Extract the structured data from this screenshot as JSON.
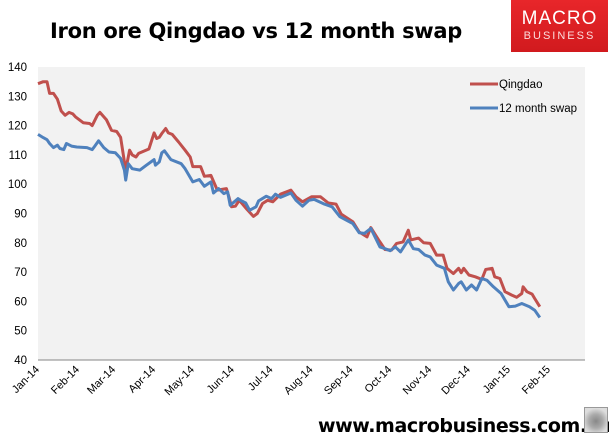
{
  "header": {
    "title": "Iron ore Qingdao vs 12 month swap"
  },
  "logo": {
    "line1": "MACRO",
    "line2": "BUSINESS"
  },
  "footer": {
    "url": "www.macrobusiness.com.au"
  },
  "chart_data": {
    "type": "line",
    "title": "Iron ore Qingdao vs 12 month swap",
    "xlabel": "",
    "ylabel": "",
    "ylim": [
      40,
      140
    ],
    "yticks": [
      40,
      50,
      60,
      70,
      80,
      90,
      100,
      110,
      120,
      130,
      140
    ],
    "xlim": [
      "2014-01-01",
      "2015-03-01"
    ],
    "xticks": [
      {
        "date": "2014-01-01",
        "label": "Jan-14"
      },
      {
        "date": "2014-02-01",
        "label": "Feb-14"
      },
      {
        "date": "2014-03-01",
        "label": "Mar-14"
      },
      {
        "date": "2014-04-01",
        "label": "Apr-14"
      },
      {
        "date": "2014-05-01",
        "label": "May-14"
      },
      {
        "date": "2014-06-01",
        "label": "Jun-14"
      },
      {
        "date": "2014-07-01",
        "label": "Jul-14"
      },
      {
        "date": "2014-08-01",
        "label": "Aug-14"
      },
      {
        "date": "2014-09-01",
        "label": "Sep-14"
      },
      {
        "date": "2014-10-01",
        "label": "Oct-14"
      },
      {
        "date": "2014-11-01",
        "label": "Nov-14"
      },
      {
        "date": "2014-12-01",
        "label": "Dec-14"
      },
      {
        "date": "2015-01-01",
        "label": "Jan-15"
      },
      {
        "date": "2015-02-01",
        "label": "Feb-15"
      }
    ],
    "grid": false,
    "legend_position": "top-right",
    "background": "#f2f2f2",
    "series": [
      {
        "name": "Qingdao",
        "color": "#c0504d",
        "points": [
          [
            "2014-01-01",
            134.3
          ],
          [
            "2014-01-05",
            135
          ],
          [
            "2014-01-08",
            135
          ],
          [
            "2014-01-10",
            131
          ],
          [
            "2014-01-13",
            131
          ],
          [
            "2014-01-16",
            129
          ],
          [
            "2014-01-19",
            125
          ],
          [
            "2014-01-22",
            123.5
          ],
          [
            "2014-01-25",
            124.5
          ],
          [
            "2014-01-28",
            124
          ],
          [
            "2014-01-30",
            123
          ],
          [
            "2014-02-05",
            121
          ],
          [
            "2014-02-10",
            120.7
          ],
          [
            "2014-02-12",
            120
          ],
          [
            "2014-02-16",
            123.5
          ],
          [
            "2014-02-18",
            124.5
          ],
          [
            "2014-02-23",
            122
          ],
          [
            "2014-02-27",
            118.4
          ],
          [
            "2014-03-03",
            118
          ],
          [
            "2014-03-06",
            116
          ],
          [
            "2014-03-10",
            104.8
          ],
          [
            "2014-03-13",
            111.6
          ],
          [
            "2014-03-15",
            110
          ],
          [
            "2014-03-18",
            109.3
          ],
          [
            "2014-03-20",
            110.5
          ],
          [
            "2014-03-28",
            112
          ],
          [
            "2014-04-01",
            117.5
          ],
          [
            "2014-04-03",
            115.6
          ],
          [
            "2014-04-05",
            116
          ],
          [
            "2014-04-07",
            117.3
          ],
          [
            "2014-04-10",
            119
          ],
          [
            "2014-04-12",
            117.5
          ],
          [
            "2014-04-15",
            117
          ],
          [
            "2014-04-20",
            114.4
          ],
          [
            "2014-04-25",
            111.6
          ],
          [
            "2014-04-29",
            109.3
          ],
          [
            "2014-05-01",
            106
          ],
          [
            "2014-05-07",
            106
          ],
          [
            "2014-05-10",
            102.7
          ],
          [
            "2014-05-15",
            103
          ],
          [
            "2014-05-20",
            98
          ],
          [
            "2014-05-23",
            98.2
          ],
          [
            "2014-05-27",
            98.5
          ],
          [
            "2014-05-29",
            95.7
          ],
          [
            "2014-05-31",
            92.3
          ],
          [
            "2014-06-03",
            92.5
          ],
          [
            "2014-06-06",
            94.5
          ],
          [
            "2014-06-12",
            91.4
          ],
          [
            "2014-06-17",
            89
          ],
          [
            "2014-06-20",
            90
          ],
          [
            "2014-06-24",
            93.4
          ],
          [
            "2014-06-28",
            94.5
          ],
          [
            "2014-07-02",
            94
          ],
          [
            "2014-07-08",
            96.6
          ],
          [
            "2014-07-16",
            98
          ],
          [
            "2014-07-20",
            95.7
          ],
          [
            "2014-07-25",
            94
          ],
          [
            "2014-08-01",
            95.7
          ],
          [
            "2014-08-08",
            95.7
          ],
          [
            "2014-08-14",
            93.6
          ],
          [
            "2014-08-20",
            93.2
          ],
          [
            "2014-08-24",
            89.8
          ],
          [
            "2014-09-02",
            87.2
          ],
          [
            "2014-09-07",
            83.7
          ],
          [
            "2014-09-13",
            82
          ],
          [
            "2014-09-16",
            85.2
          ],
          [
            "2014-09-22",
            81
          ],
          [
            "2014-09-27",
            77.7
          ],
          [
            "2014-10-02",
            77.5
          ],
          [
            "2014-10-06",
            79.8
          ],
          [
            "2014-10-11",
            80.3
          ],
          [
            "2014-10-15",
            84.3
          ],
          [
            "2014-10-17",
            81
          ],
          [
            "2014-10-23",
            81.6
          ],
          [
            "2014-10-27",
            80
          ],
          [
            "2014-11-01",
            79.8
          ],
          [
            "2014-11-06",
            75.8
          ],
          [
            "2014-11-11",
            75.8
          ],
          [
            "2014-11-14",
            71.3
          ],
          [
            "2014-11-19",
            69.5
          ],
          [
            "2014-11-23",
            71.3
          ],
          [
            "2014-11-25",
            69.8
          ],
          [
            "2014-11-27",
            71.3
          ],
          [
            "2014-12-01",
            69
          ],
          [
            "2014-12-06",
            68.4
          ],
          [
            "2014-12-11",
            67.5
          ],
          [
            "2014-12-14",
            70.9
          ],
          [
            "2014-12-19",
            71.3
          ],
          [
            "2014-12-21",
            68.4
          ],
          [
            "2014-12-25",
            67.8
          ],
          [
            "2014-12-29",
            63.3
          ],
          [
            "2015-01-03",
            62.2
          ],
          [
            "2015-01-07",
            61.4
          ],
          [
            "2015-01-11",
            62.7
          ],
          [
            "2015-01-12",
            65
          ],
          [
            "2015-01-15",
            63.3
          ],
          [
            "2015-01-19",
            62.5
          ],
          [
            "2015-01-21",
            61
          ],
          [
            "2015-01-25",
            58.2
          ]
        ]
      },
      {
        "name": "12 month swap",
        "color": "#4f81bd",
        "points": [
          [
            "2014-01-01",
            117
          ],
          [
            "2014-01-05",
            115.9
          ],
          [
            "2014-01-08",
            115.2
          ],
          [
            "2014-01-10",
            113.9
          ],
          [
            "2014-01-13",
            112.5
          ],
          [
            "2014-01-16",
            113.3
          ],
          [
            "2014-01-18",
            112.2
          ],
          [
            "2014-01-21",
            111.8
          ],
          [
            "2014-01-23",
            113.9
          ],
          [
            "2014-01-27",
            113
          ],
          [
            "2014-01-31",
            112.7
          ],
          [
            "2014-02-08",
            112.5
          ],
          [
            "2014-02-12",
            111.8
          ],
          [
            "2014-02-14",
            113
          ],
          [
            "2014-02-17",
            114.8
          ],
          [
            "2014-02-21",
            112.5
          ],
          [
            "2014-02-25",
            111
          ],
          [
            "2014-03-02",
            110.7
          ],
          [
            "2014-03-06",
            108.8
          ],
          [
            "2014-03-09",
            104.8
          ],
          [
            "2014-03-10",
            101.4
          ],
          [
            "2014-03-12",
            107
          ],
          [
            "2014-03-15",
            105.3
          ],
          [
            "2014-03-21",
            104.8
          ],
          [
            "2014-03-26",
            106.5
          ],
          [
            "2014-04-01",
            108.4
          ],
          [
            "2014-04-02",
            106.5
          ],
          [
            "2014-04-05",
            107.6
          ],
          [
            "2014-04-07",
            110.7
          ],
          [
            "2014-04-09",
            111.4
          ],
          [
            "2014-04-14",
            108.4
          ],
          [
            "2014-04-22",
            107
          ],
          [
            "2014-04-25",
            105.3
          ],
          [
            "2014-05-01",
            100.8
          ],
          [
            "2014-05-06",
            101.6
          ],
          [
            "2014-05-10",
            99.3
          ],
          [
            "2014-05-15",
            100.8
          ],
          [
            "2014-05-17",
            97
          ],
          [
            "2014-05-21",
            98.5
          ],
          [
            "2014-05-25",
            96.8
          ],
          [
            "2014-05-28",
            97.4
          ],
          [
            "2014-05-30",
            92.8
          ],
          [
            "2014-06-05",
            95.1
          ],
          [
            "2014-06-07",
            94.5
          ],
          [
            "2014-06-11",
            93.6
          ],
          [
            "2014-06-14",
            91.1
          ],
          [
            "2014-06-19",
            92.3
          ],
          [
            "2014-06-21",
            94.3
          ],
          [
            "2014-06-27",
            95.9
          ],
          [
            "2014-07-01",
            95.1
          ],
          [
            "2014-07-04",
            96.6
          ],
          [
            "2014-07-08",
            95.5
          ],
          [
            "2014-07-16",
            97
          ],
          [
            "2014-07-20",
            94.5
          ],
          [
            "2014-07-25",
            92.5
          ],
          [
            "2014-07-30",
            94.5
          ],
          [
            "2014-08-03",
            94.8
          ],
          [
            "2014-08-11",
            93.2
          ],
          [
            "2014-08-17",
            92.3
          ],
          [
            "2014-08-23",
            88.9
          ],
          [
            "2014-08-29",
            87.5
          ],
          [
            "2014-09-02",
            86.6
          ],
          [
            "2014-09-07",
            83.4
          ],
          [
            "2014-09-11",
            83.2
          ],
          [
            "2014-09-16",
            84.9
          ],
          [
            "2014-09-23",
            78.6
          ],
          [
            "2014-09-27",
            78
          ],
          [
            "2014-10-01",
            77.3
          ],
          [
            "2014-10-05",
            78.6
          ],
          [
            "2014-10-09",
            76.9
          ],
          [
            "2014-10-15",
            81
          ],
          [
            "2014-10-19",
            78
          ],
          [
            "2014-10-23",
            77.7
          ],
          [
            "2014-10-28",
            75.8
          ],
          [
            "2014-11-01",
            75.2
          ],
          [
            "2014-11-06",
            72.4
          ],
          [
            "2014-11-12",
            71.3
          ],
          [
            "2014-11-15",
            66.7
          ],
          [
            "2014-11-19",
            63.9
          ],
          [
            "2014-11-23",
            66.1
          ],
          [
            "2014-11-25",
            66.7
          ],
          [
            "2014-11-29",
            63.9
          ],
          [
            "2014-12-03",
            65.6
          ],
          [
            "2014-12-07",
            63.9
          ],
          [
            "2014-12-11",
            67.8
          ],
          [
            "2014-12-15",
            67.2
          ],
          [
            "2014-12-20",
            65
          ],
          [
            "2014-12-26",
            62.7
          ],
          [
            "2015-01-01",
            58.2
          ],
          [
            "2015-01-06",
            58.4
          ],
          [
            "2015-01-11",
            59.3
          ],
          [
            "2015-01-17",
            58.2
          ],
          [
            "2015-01-21",
            57
          ],
          [
            "2015-01-25",
            54.5
          ]
        ]
      }
    ]
  }
}
